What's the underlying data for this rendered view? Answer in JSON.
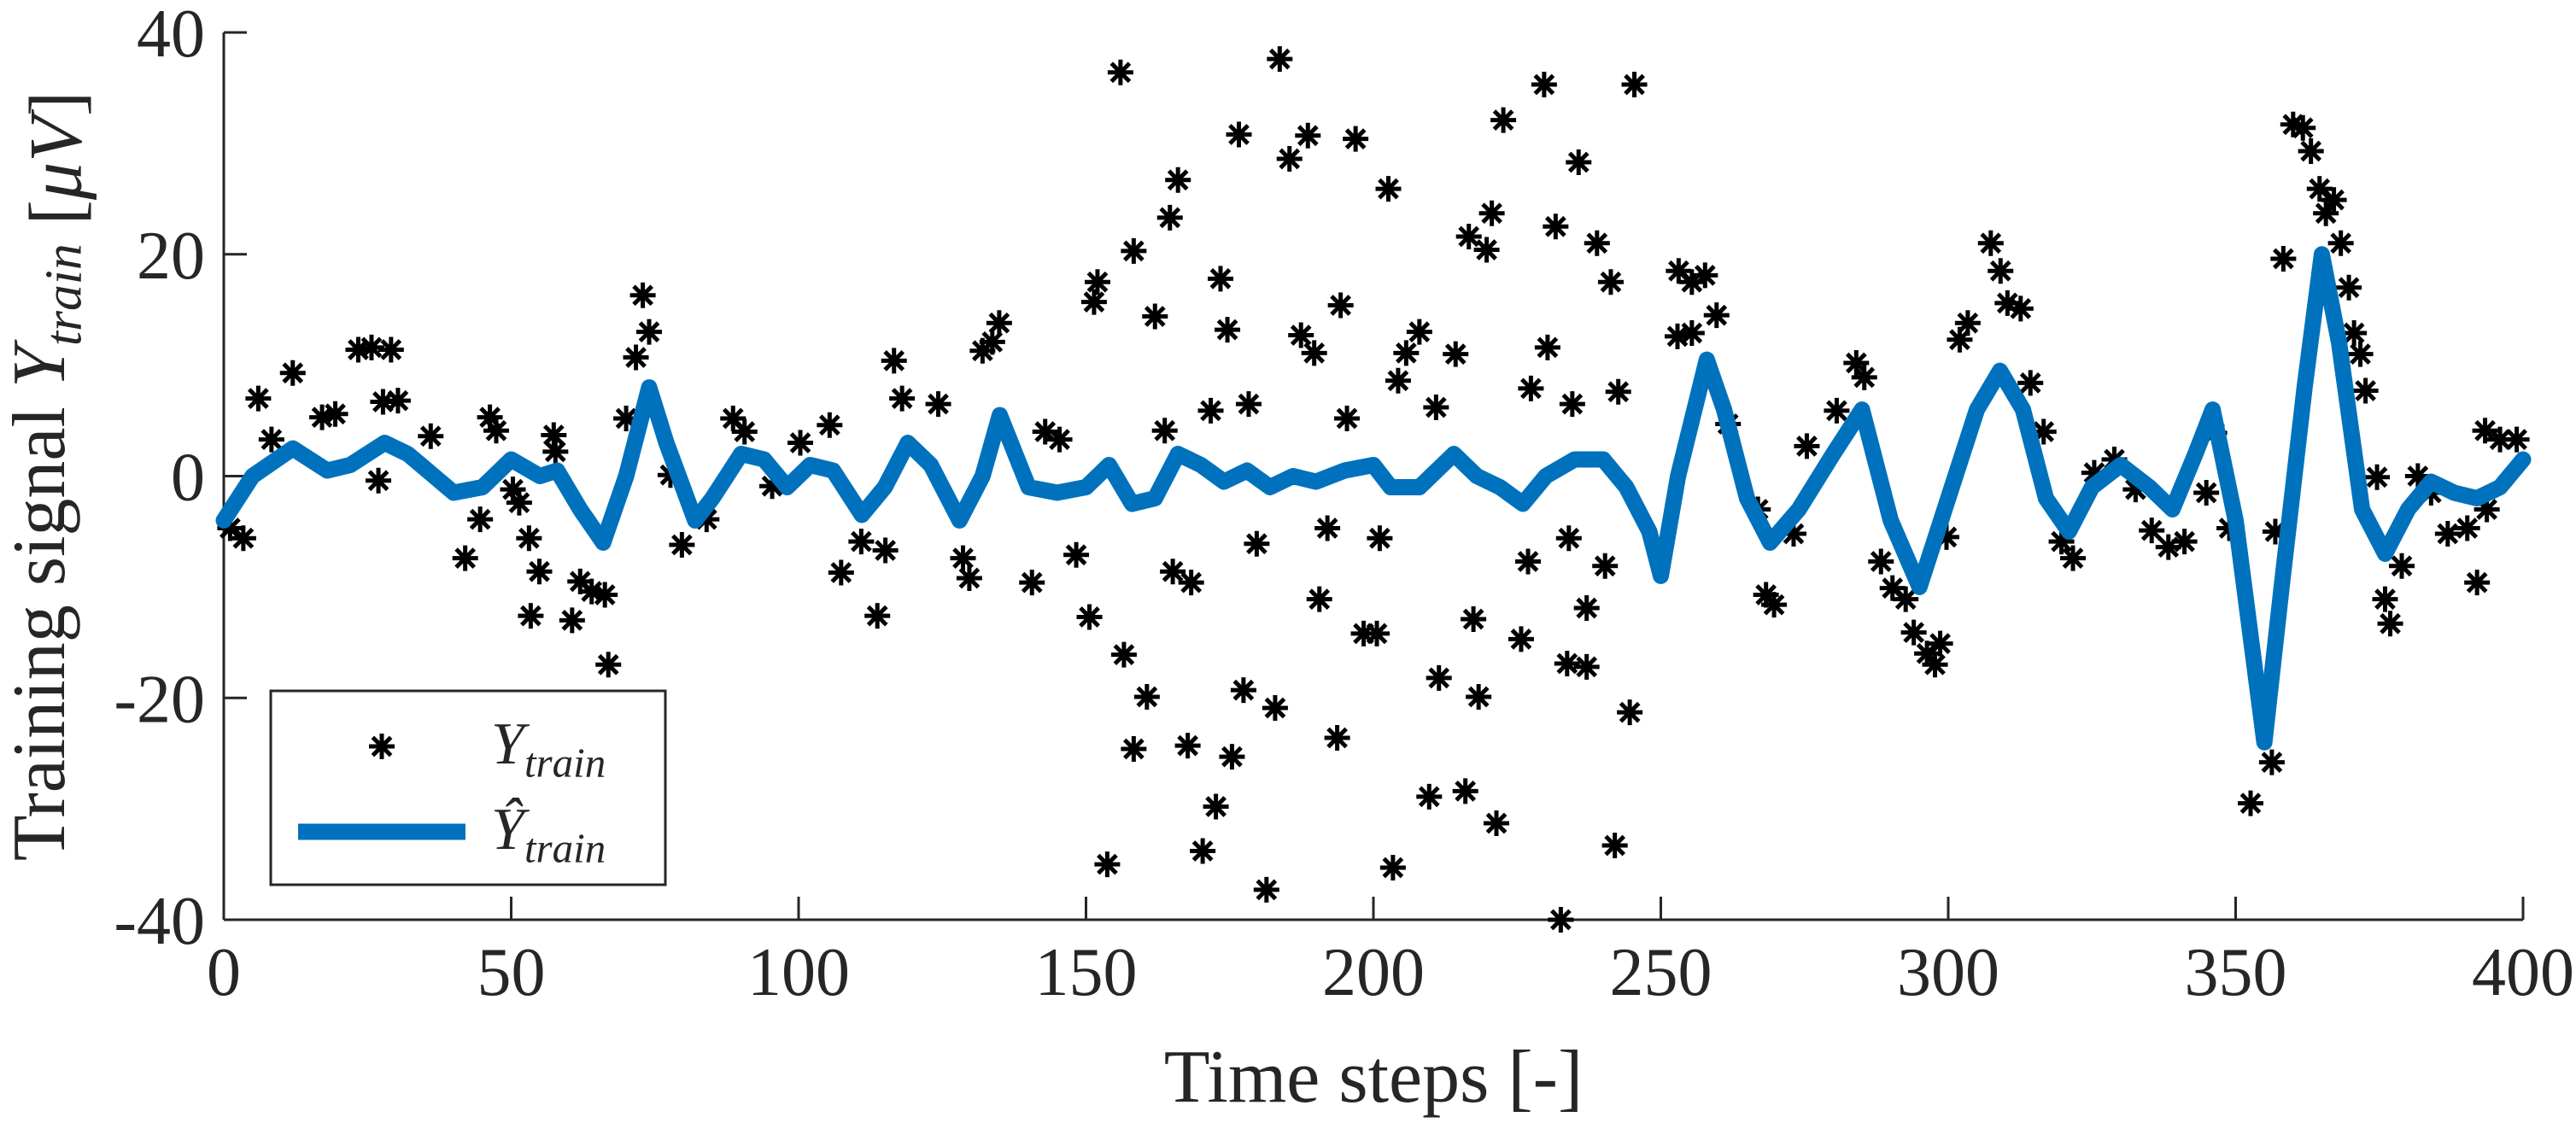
{
  "chart_data": {
    "type": "line",
    "xlabel": "Time steps [-]",
    "ylabel": "Training signal  Y_train [μV]",
    "xlim": [
      0,
      400
    ],
    "xticks": [
      0,
      50,
      100,
      150,
      200,
      250,
      300,
      350,
      400
    ],
    "ylim": [
      -40,
      40
    ],
    "yticks": [
      -40,
      -20,
      0,
      20,
      40
    ],
    "grid": false,
    "legend": "lower left",
    "series": [
      {
        "name": "Y_train",
        "type": "scatter",
        "color": "#000000",
        "x": [
          156,
          183.7,
          229.7,
          245.4,
          176.6,
          188.6,
          196.9,
          185.4,
          235.7,
          202.6,
          222.6,
          220.6,
          166,
          164.6,
          216.6,
          219.7,
          231.7,
          238.9,
          241.3,
          158.3,
          152,
          151.4,
          173.4,
          174.6,
          194.3,
          187.4,
          189.7,
          208,
          205.7,
          214.3,
          230.3,
          162,
          204.3,
          227.4,
          242.6,
          171.7,
          178.3,
          195.4,
          210.9,
          234.6,
          163.7,
          150.6,
          156.6,
          160.6,
          158.3,
          153.7,
          167.7,
          175.4,
          172.6,
          170.3,
          181.4,
          182.9,
          177.4,
          193.7,
          198.3,
          200.6,
          190.6,
          179.7,
          165.1,
          168.3,
          192,
          211.4,
          209.7,
          216,
          218.3,
          221.4,
          203.4,
          217.4,
          225.7,
          232.6,
          233.7,
          237.1,
          242,
          244.6,
          237.1,
          240.3,
          234,
          226.9,
          201.1,
          140.6,
          148.3,
          1.1,
          3.4,
          6,
          8.3,
          12,
          17.1,
          19.4,
          23.4,
          25.7,
          27.7,
          29.1,
          30.3,
          26.9,
          36,
          42,
          44.6,
          46.3,
          47.4,
          50.3,
          51.4,
          53.1,
          54.9,
          53.4,
          57.4,
          57.7,
          60.6,
          62,
          64,
          66.3,
          66.9,
          70,
          71.7,
          72.9,
          74,
          77.7,
          79.7,
          84,
          88.6,
          90.6,
          95.4,
          100.3,
          105.4,
          107.4,
          110.9,
          113.7,
          115.1,
          116.6,
          118,
          124.3,
          128.6,
          129.7,
          132,
          133.7,
          134.9,
          142.9,
          145.4,
          253.1,
          255.4,
          257.7,
          259.7,
          252.9,
          255.4,
          261.7,
          266.9,
          268.3,
          269.7,
          273.1,
          275.4,
          280.6,
          284,
          285.4,
          288.3,
          290.3,
          292.6,
          294,
          296.3,
          297.7,
          298.6,
          299.7,
          302,
          303.4,
          307.4,
          309.1,
          310.3,
          312.6,
          314.3,
          316.6,
          319.7,
          321.7,
          325.4,
          328.9,
          332.6,
          335.4,
          338.3,
          341.1,
          344.9,
          346.3,
          348.9,
          352.6,
          356.3,
          356.9,
          358.3,
          360,
          361.7,
          363.1,
          364.6,
          365.7,
          367.1,
          368.3,
          369.7,
          370.6,
          371.7,
          372.6,
          374.6,
          376,
          376.9,
          378.9,
          381.7,
          384,
          386.9,
          390.3,
          392,
          393.4,
          396,
          398.9,
          393.7
        ],
        "values": [
          36.4,
          37.6,
          35.3,
          35.3,
          30.8,
          30.7,
          30.4,
          28.6,
          28.3,
          25.9,
          32.1,
          23.7,
          26.7,
          23.3,
          21.6,
          20.4,
          22.5,
          21,
          17.5,
          20.3,
          17.5,
          15.7,
          17.8,
          13.2,
          15.4,
          12.7,
          11.1,
          13,
          11.1,
          11,
          11.6,
          14.4,
          8.6,
          7.9,
          7.6,
          5.9,
          6.5,
          5.2,
          6.2,
          6.5,
          4.1,
          -12.7,
          -16.1,
          -19.9,
          -24.6,
          -35,
          -24.3,
          -25.3,
          -29.8,
          -33.8,
          -37.3,
          -20.9,
          -19.3,
          -23.6,
          -14.2,
          -14.2,
          -11.1,
          -6.1,
          -8.6,
          -9.6,
          -4.7,
          -18.2,
          -28.9,
          -28.4,
          -19.9,
          -31.3,
          -35.3,
          -12.9,
          -14.7,
          -40,
          -16.9,
          -17.2,
          -33.3,
          -21.3,
          -11.9,
          -8.1,
          -5.6,
          -7.7,
          -5.6,
          -9.6,
          -7.1,
          -4.7,
          -5.6,
          7,
          3.3,
          9.3,
          5.3,
          5.6,
          11.4,
          11.6,
          6.7,
          11.4,
          6.8,
          -0.4,
          3.6,
          -7.4,
          -3.9,
          5.3,
          4.1,
          -1.2,
          -2.4,
          -5.6,
          -8.6,
          -12.6,
          3.7,
          2.2,
          -13,
          -9.5,
          -10.4,
          -10.7,
          -17,
          5.2,
          10.7,
          16.3,
          13,
          0.1,
          -6.2,
          -3.9,
          5.2,
          4,
          -0.9,
          3,
          4.6,
          -8.7,
          -5.9,
          -12.6,
          -6.7,
          10.4,
          7,
          6.5,
          -7.4,
          -9.2,
          11.3,
          12.1,
          13.8,
          4,
          3.3,
          18.5,
          17.5,
          18.1,
          14.5,
          12.6,
          12.9,
          4.7,
          -3,
          -10.7,
          -11.6,
          -5.2,
          2.7,
          5.9,
          10.2,
          8.9,
          -7.7,
          -10.1,
          -11.1,
          -14.1,
          -16,
          -17,
          -15.1,
          -5.5,
          12.3,
          13.8,
          21,
          18.5,
          15.6,
          15.1,
          8.4,
          4,
          -5.9,
          -7.4,
          0.3,
          1.5,
          -1.2,
          -4.9,
          -6.4,
          -5.9,
          -1.5,
          3.9,
          -4.7,
          -29.5,
          -25.8,
          -5,
          19.6,
          31.7,
          31.4,
          29.3,
          25.9,
          23.7,
          24.9,
          21,
          17,
          12.9,
          11,
          7.7,
          -0.1,
          -11.1,
          -13.3,
          -8.1,
          0,
          -1.5,
          -5.2,
          -4.7,
          -9.6,
          4.1,
          3.3,
          3.3,
          -3
        ]
      },
      {
        "name": "Ŷ_train",
        "type": "line",
        "color": "#0072bd",
        "x": [
          0,
          5,
          12,
          18,
          22,
          28,
          32,
          40,
          45,
          50,
          55,
          58,
          62,
          66,
          70,
          74,
          77,
          82,
          85,
          90,
          94,
          98,
          102,
          106,
          111,
          115,
          119,
          123,
          128,
          132,
          135,
          140,
          145,
          150,
          154,
          158,
          162,
          166,
          170,
          174,
          178,
          182,
          186,
          190,
          195,
          200,
          203,
          208,
          214,
          218,
          222,
          226,
          230,
          235,
          240,
          244,
          248,
          250,
          253,
          258,
          261,
          265,
          269,
          274,
          280,
          285,
          290,
          295,
          300,
          305,
          309,
          313,
          317,
          321,
          325,
          330,
          335,
          339,
          343,
          346,
          350,
          355,
          358,
          362,
          365,
          368,
          372,
          376,
          380,
          384,
          388,
          392,
          396,
          400
        ],
        "values": [
          -4,
          0,
          2.5,
          0.5,
          1,
          3,
          2,
          -1.5,
          -1,
          1.5,
          0,
          0.5,
          -3,
          -6,
          0,
          8,
          3,
          -4,
          -2,
          2,
          1.5,
          -1,
          1,
          0.5,
          -3.5,
          -1,
          3,
          1,
          -4,
          0,
          5.5,
          -1,
          -1.5,
          -1,
          1,
          -2.5,
          -2,
          2,
          1,
          -0.5,
          0.5,
          -1,
          0,
          -0.5,
          0.5,
          1,
          -1,
          -1,
          2,
          0,
          -1,
          -2.5,
          0,
          1.5,
          1.5,
          -1,
          -5,
          -9,
          0,
          10.5,
          6,
          -2,
          -6,
          -3,
          2,
          6,
          -4,
          -10,
          -2,
          6,
          9.5,
          6,
          -2,
          -5,
          -1,
          1,
          -1,
          -3,
          2,
          6,
          -4,
          -24,
          -10,
          8,
          20,
          12,
          -3,
          -7,
          -3,
          -0.5,
          -1.5,
          -2,
          -1,
          1.5
        ]
      }
    ]
  }
}
